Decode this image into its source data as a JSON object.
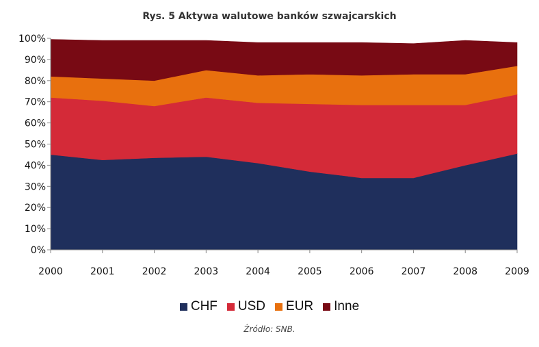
{
  "chart_data": {
    "type": "area",
    "stacked": true,
    "title": "Rys. 5 Aktywa walutowe banków szwajcarskich",
    "xlabel": "",
    "ylabel": "",
    "x": [
      "2000",
      "2001",
      "2002",
      "2003",
      "2004",
      "2005",
      "2006",
      "2007",
      "2008",
      "2009"
    ],
    "yticks": [
      "0%",
      "10%",
      "20%",
      "30%",
      "40%",
      "50%",
      "60%",
      "70%",
      "80%",
      "90%",
      "100%"
    ],
    "ylim": [
      0,
      100
    ],
    "grid": false,
    "legend_position": "bottom",
    "series": [
      {
        "name": "CHF",
        "color": "#1f2f5c",
        "values": [
          45,
          42.5,
          43.5,
          44,
          41,
          37,
          34,
          34,
          40,
          45.5
        ]
      },
      {
        "name": "USD",
        "color": "#d42a38",
        "values": [
          27,
          28,
          24.5,
          28,
          28.5,
          32,
          34.5,
          34.5,
          28.5,
          28
        ]
      },
      {
        "name": "EUR",
        "color": "#e8700e",
        "values": [
          10,
          10.5,
          12,
          13,
          13,
          14,
          14,
          14.5,
          14.5,
          13.5
        ]
      },
      {
        "name": "Inne",
        "color": "#780a14",
        "values": [
          17.5,
          18,
          19,
          14,
          15.5,
          15,
          15.5,
          14.5,
          16,
          11
        ]
      }
    ]
  },
  "source": "Źródło: SNB."
}
